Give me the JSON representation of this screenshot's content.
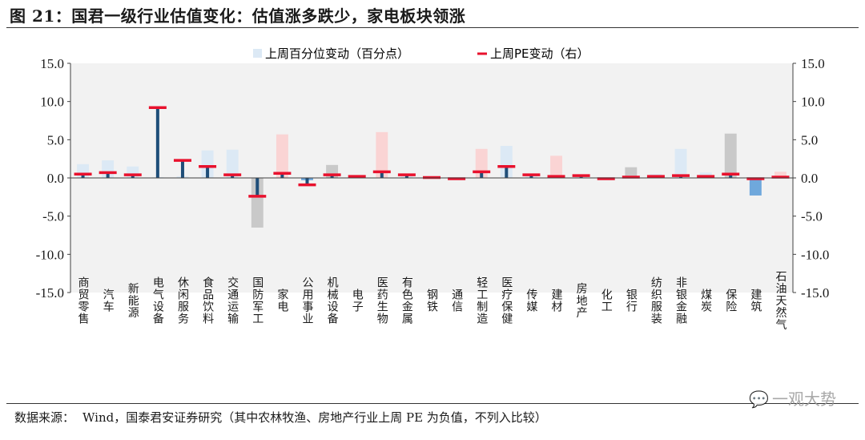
{
  "header": {
    "title": "图 21：国君一级行业估值变化：估值涨多跌少，家电板块领涨"
  },
  "footer": {
    "source_label": "数据来源：",
    "source_text": "Wind，国泰君安证券研究（其中农林牧渔、房地产行业上周 PE 为负值，不列入比较）"
  },
  "watermark": {
    "text": "一观大势"
  },
  "colors": {
    "positive_bar": "#dce9f5",
    "negative_bar": "#6fa8dc",
    "pe_line": "#e8112d",
    "stem": "#1f4e79",
    "plot_bg": "#f2f2f2"
  },
  "chart_data": {
    "type": "bar",
    "title": "",
    "legend": [
      {
        "name": "上周百分位变动（百分点）",
        "type": "bar",
        "position": "top-center"
      },
      {
        "name": "上周PE变动（右）",
        "type": "marker",
        "position": "top-center"
      }
    ],
    "ylim_left": [
      -15,
      15
    ],
    "ylim_right": [
      -15,
      15
    ],
    "yticks": [
      "15.0",
      "10.0",
      "5.0",
      "0.0",
      "-5.0",
      "-10.0",
      "-15.0"
    ],
    "categories": [
      "商贸零售",
      "汽车",
      "新能源",
      "电气设备",
      "休闲服务",
      "食品饮料",
      "交通运输",
      "国防军工",
      "家电",
      "公用事业",
      "机械设备",
      "电子",
      "医药生物",
      "有色金属",
      "钢铁",
      "通信",
      "轻工制造",
      "医疗保健",
      "传媒",
      "建材",
      "房地产",
      "化工",
      "银行",
      "纺织服装",
      "非银金融",
      "煤炭",
      "保险",
      "建筑",
      "石油天然气"
    ],
    "series": [
      {
        "name": "上周百分位变动（百分点）",
        "values": [
          1.8,
          2.3,
          1.5,
          0.1,
          0.2,
          3.6,
          3.7,
          -6.5,
          5.7,
          -0.3,
          1.7,
          0.1,
          6.0,
          0.2,
          0.1,
          0.05,
          3.8,
          4.2,
          0.2,
          2.9,
          0.1,
          0.05,
          1.4,
          0.5,
          3.8,
          0.7,
          5.8,
          -2.3,
          0.8
        ]
      },
      {
        "name": "上周PE变动（右）",
        "values": [
          0.5,
          0.7,
          0.4,
          9.2,
          2.3,
          1.5,
          0.4,
          -2.4,
          0.6,
          -0.9,
          0.4,
          0.2,
          0.8,
          0.4,
          0.05,
          -0.1,
          0.8,
          1.5,
          0.4,
          0.2,
          0.3,
          -0.1,
          0.1,
          0.2,
          0.3,
          0.2,
          0.5,
          -0.1,
          0.1
        ]
      }
    ],
    "bar_colors": [
      "#dce9f5",
      "#dce9f5",
      "#dce9f5",
      "#dce9f5",
      "#dce9f5",
      "#dce9f5",
      "#dce9f5",
      "#c9c9c9",
      "#fad4d4",
      "#6fa8dc",
      "#c9c9c9",
      "#dce9f5",
      "#fad4d4",
      "#dce9f5",
      "#dce9f5",
      "#dce9f5",
      "#fad4d4",
      "#dce9f5",
      "#dce9f5",
      "#fad4d4",
      "#dce9f5",
      "#dce9f5",
      "#c9c9c9",
      "#dce9f5",
      "#dce9f5",
      "#dce9f5",
      "#c9c9c9",
      "#6fa8dc",
      "#fad4d4"
    ]
  }
}
